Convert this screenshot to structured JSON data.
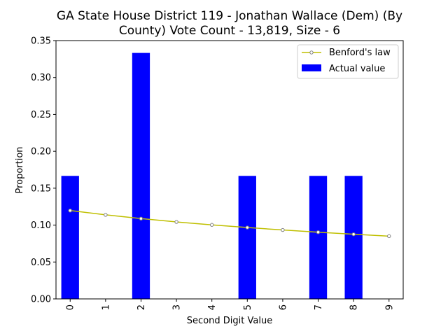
{
  "chart_data": {
    "type": "bar",
    "title_lines": [
      "GA State House District 119 - Jonathan Wallace (Dem) (By",
      "County) Vote Count - 13,819, Size - 6"
    ],
    "xlabel": "Second Digit Value",
    "ylabel": "Proportion",
    "categories": [
      "0",
      "1",
      "2",
      "3",
      "4",
      "5",
      "6",
      "7",
      "8",
      "9"
    ],
    "ylim": [
      0,
      0.35
    ],
    "yticks": [
      "0.00",
      "0.05",
      "0.10",
      "0.15",
      "0.20",
      "0.25",
      "0.30",
      "0.35"
    ],
    "series": [
      {
        "name": "Actual value",
        "kind": "bar",
        "color": "#0000ff",
        "values": [
          0.1667,
          0,
          0.3333,
          0,
          0,
          0.1667,
          0,
          0.1667,
          0.1667,
          0
        ]
      },
      {
        "name": "Benford's law",
        "kind": "line",
        "color": "#bfbf00",
        "values": [
          0.1197,
          0.1139,
          0.1088,
          0.1043,
          0.1003,
          0.0967,
          0.0934,
          0.0904,
          0.0876,
          0.085
        ]
      }
    ],
    "legend_position": "upper right",
    "grid": false
  }
}
